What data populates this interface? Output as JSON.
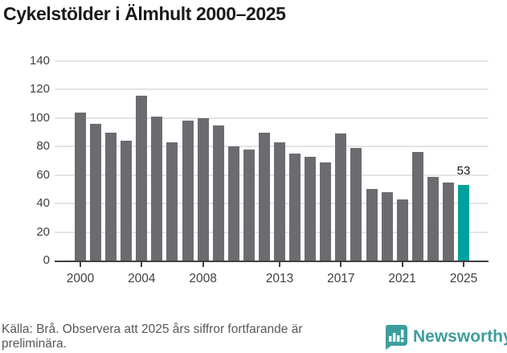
{
  "title": "Cykelstölder i Älmhult 2000–2025",
  "chart_data": {
    "type": "bar",
    "title": "Cykelstölder i Älmhult 2000–2025",
    "categories": [
      "2000",
      "2001",
      "2002",
      "2003",
      "2004",
      "2005",
      "2006",
      "2007",
      "2008",
      "2009",
      "2010",
      "2011",
      "2012",
      "2013",
      "2014",
      "2015",
      "2016",
      "2017",
      "2018",
      "2019",
      "2020",
      "2021",
      "2022",
      "2023",
      "2024",
      "2025"
    ],
    "values": [
      104,
      96,
      90,
      84,
      116,
      101,
      83,
      98,
      100,
      95,
      80,
      78,
      90,
      83,
      75,
      73,
      69,
      89,
      79,
      50,
      48,
      43,
      76,
      59,
      55,
      53
    ],
    "highlight_category": "2025",
    "highlight_value_label": "53",
    "y_ticks": [
      0,
      20,
      40,
      60,
      80,
      100,
      120,
      140
    ],
    "x_tick_labels": [
      "2000",
      "2004",
      "2008",
      "2013",
      "2017",
      "2021",
      "2025"
    ],
    "ylim": [
      0,
      140
    ],
    "grid": "horizontal",
    "legend": "none",
    "bar_color": "#6c6c70",
    "highlight_color": "#00a19b"
  },
  "footer": {
    "source_note": "Källa: Brå. Observera att 2025 års siffror fortfarande är preliminära."
  },
  "logo": {
    "label": "Newsworthy",
    "icon": "bar-chart-speech-bubble-icon",
    "color": "#3c9e9c"
  }
}
